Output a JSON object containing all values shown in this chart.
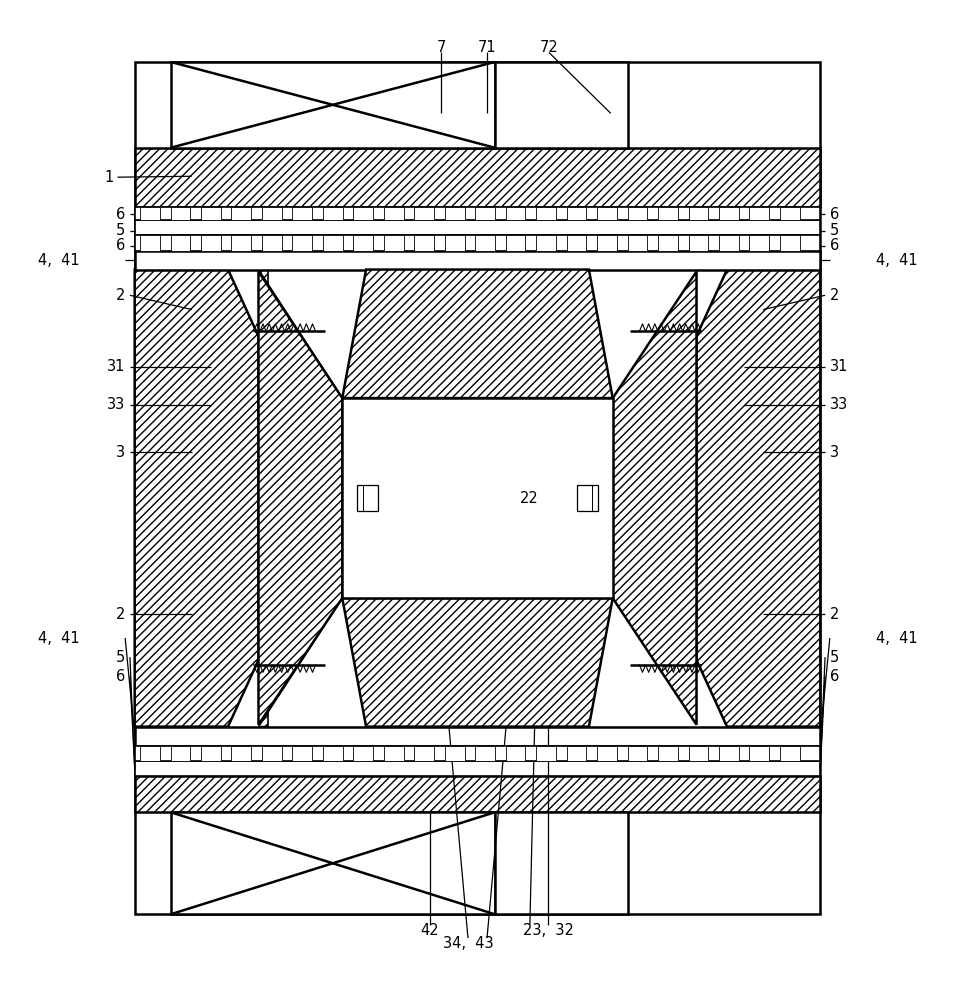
{
  "bg_color": "#ffffff",
  "line_color": "#000000",
  "figsize": [
    9.55,
    10.0
  ],
  "dpi": 100,
  "ml": 0.14,
  "mr": 0.86,
  "mt": 0.96,
  "mb": 0.065,
  "ann_fs": 10.5
}
